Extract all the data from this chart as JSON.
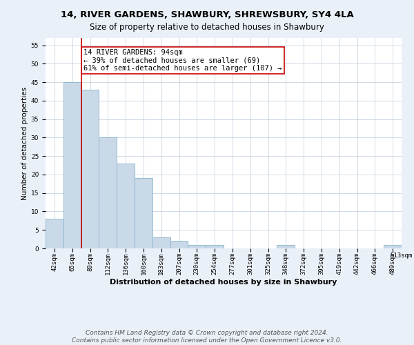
{
  "title": "14, RIVER GARDENS, SHAWBURY, SHREWSBURY, SY4 4LA",
  "subtitle": "Size of property relative to detached houses in Shawbury",
  "xlabel": "Distribution of detached houses by size in Shawbury",
  "ylabel": "Number of detached properties",
  "bar_values": [
    8,
    45,
    43,
    30,
    23,
    19,
    3,
    2,
    1,
    1,
    0,
    0,
    0,
    1,
    0,
    0,
    0,
    0,
    0,
    1
  ],
  "bin_labels": [
    "42sqm",
    "65sqm",
    "89sqm",
    "112sqm",
    "136sqm",
    "160sqm",
    "183sqm",
    "207sqm",
    "230sqm",
    "254sqm",
    "277sqm",
    "301sqm",
    "325sqm",
    "348sqm",
    "372sqm",
    "395sqm",
    "419sqm",
    "442sqm",
    "466sqm",
    "489sqm",
    "513sqm"
  ],
  "bar_color": "#c9d9e8",
  "bar_edge_color": "#8ab4cc",
  "property_line_color": "#cc0000",
  "annotation_text": "14 RIVER GARDENS: 94sqm\n← 39% of detached houses are smaller (69)\n61% of semi-detached houses are larger (107) →",
  "annotation_box_color": "white",
  "annotation_box_edge_color": "#cc0000",
  "ylim": [
    0,
    57
  ],
  "yticks": [
    0,
    5,
    10,
    15,
    20,
    25,
    30,
    35,
    40,
    45,
    50,
    55
  ],
  "footer_text": "Contains HM Land Registry data © Crown copyright and database right 2024.\nContains public sector information licensed under the Open Government Licence v3.0.",
  "background_color": "#eaf0f8",
  "plot_background_color": "#ffffff",
  "grid_color": "#c8d4e0",
  "title_fontsize": 9.5,
  "subtitle_fontsize": 8.5,
  "ylabel_fontsize": 7.5,
  "xlabel_fontsize": 8,
  "tick_fontsize": 6.5,
  "annotation_fontsize": 7.5,
  "footer_fontsize": 6.5
}
